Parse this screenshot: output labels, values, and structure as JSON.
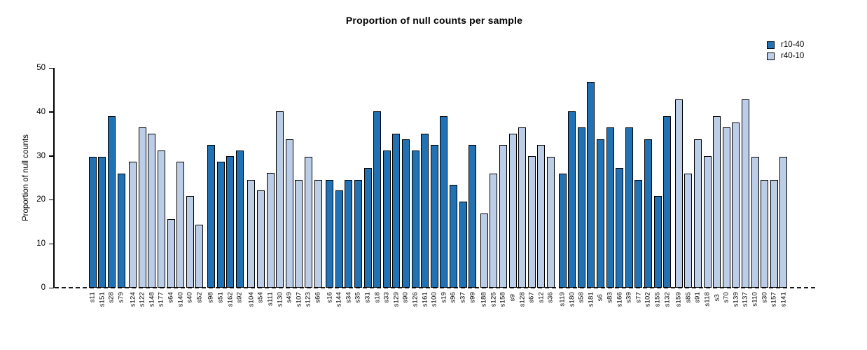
{
  "title": "Proportion of null counts per sample",
  "chart_data": {
    "type": "bar",
    "title": "Proportion of null counts per sample",
    "xlabel": "",
    "ylabel": "Proportion of null counts",
    "ylim": [
      0,
      50
    ],
    "yticks": [
      0,
      10,
      20,
      30,
      40,
      50
    ],
    "grid": false,
    "zero_baseline_style": "dashed",
    "legend": {
      "position": "top-right",
      "entries": [
        {
          "label": "r10-40",
          "color": "#2171B5"
        },
        {
          "label": "r40-10",
          "color": "#BCCDE8"
        }
      ]
    },
    "samples": [
      {
        "label": "s11",
        "value": 29.8,
        "group": "r10-40"
      },
      {
        "label": "s151",
        "value": 29.8,
        "group": "r10-40"
      },
      {
        "label": "s28",
        "value": 39.0,
        "group": "r10-40"
      },
      {
        "label": "s79",
        "value": 26.0,
        "group": "r10-40"
      },
      {
        "label": "s124",
        "value": 28.6,
        "group": "r40-10"
      },
      {
        "label": "s122",
        "value": 36.4,
        "group": "r40-10"
      },
      {
        "label": "s148",
        "value": 35.0,
        "group": "r40-10"
      },
      {
        "label": "s177",
        "value": 31.2,
        "group": "r40-10"
      },
      {
        "label": "s64",
        "value": 15.6,
        "group": "r40-10"
      },
      {
        "label": "s140",
        "value": 28.6,
        "group": "r40-10"
      },
      {
        "label": "s40",
        "value": 20.8,
        "group": "r40-10"
      },
      {
        "label": "s52",
        "value": 14.4,
        "group": "r40-10"
      },
      {
        "label": "s98",
        "value": 32.5,
        "group": "r10-40"
      },
      {
        "label": "s51",
        "value": 28.6,
        "group": "r10-40"
      },
      {
        "label": "s162",
        "value": 29.9,
        "group": "r10-40"
      },
      {
        "label": "s92",
        "value": 31.2,
        "group": "r10-40"
      },
      {
        "label": "s104",
        "value": 24.6,
        "group": "r40-10"
      },
      {
        "label": "s54",
        "value": 22.1,
        "group": "r40-10"
      },
      {
        "label": "s111",
        "value": 26.1,
        "group": "r40-10"
      },
      {
        "label": "s130",
        "value": 40.2,
        "group": "r40-10"
      },
      {
        "label": "s49",
        "value": 33.7,
        "group": "r40-10"
      },
      {
        "label": "s107",
        "value": 24.6,
        "group": "r40-10"
      },
      {
        "label": "s123",
        "value": 29.8,
        "group": "r40-10"
      },
      {
        "label": "s66",
        "value": 24.6,
        "group": "r40-10"
      },
      {
        "label": "s16",
        "value": 24.6,
        "group": "r10-40"
      },
      {
        "label": "s144",
        "value": 22.1,
        "group": "r10-40"
      },
      {
        "label": "s34",
        "value": 24.6,
        "group": "r10-40"
      },
      {
        "label": "s35",
        "value": 24.6,
        "group": "r10-40"
      },
      {
        "label": "s31",
        "value": 27.3,
        "group": "r10-40"
      },
      {
        "label": "s18",
        "value": 40.2,
        "group": "r10-40"
      },
      {
        "label": "s33",
        "value": 31.2,
        "group": "r10-40"
      },
      {
        "label": "s129",
        "value": 35.0,
        "group": "r10-40"
      },
      {
        "label": "s90",
        "value": 33.7,
        "group": "r10-40"
      },
      {
        "label": "s126",
        "value": 31.2,
        "group": "r10-40"
      },
      {
        "label": "s161",
        "value": 35.0,
        "group": "r10-40"
      },
      {
        "label": "s100",
        "value": 32.5,
        "group": "r10-40"
      },
      {
        "label": "s19",
        "value": 39.0,
        "group": "r10-40"
      },
      {
        "label": "s96",
        "value": 23.4,
        "group": "r10-40"
      },
      {
        "label": "s37",
        "value": 19.6,
        "group": "r10-40"
      },
      {
        "label": "s99",
        "value": 32.5,
        "group": "r10-40"
      },
      {
        "label": "s188",
        "value": 16.9,
        "group": "r40-10"
      },
      {
        "label": "s125",
        "value": 26.0,
        "group": "r40-10"
      },
      {
        "label": "s158",
        "value": 32.5,
        "group": "r40-10"
      },
      {
        "label": "s9",
        "value": 35.0,
        "group": "r40-10"
      },
      {
        "label": "s128",
        "value": 36.4,
        "group": "r40-10"
      },
      {
        "label": "s67",
        "value": 29.9,
        "group": "r40-10"
      },
      {
        "label": "s12",
        "value": 32.5,
        "group": "r40-10"
      },
      {
        "label": "s36",
        "value": 29.8,
        "group": "r40-10"
      },
      {
        "label": "s119",
        "value": 26.0,
        "group": "r10-40"
      },
      {
        "label": "s180",
        "value": 40.2,
        "group": "r10-40"
      },
      {
        "label": "s58",
        "value": 36.4,
        "group": "r10-40"
      },
      {
        "label": "s181",
        "value": 46.8,
        "group": "r10-40"
      },
      {
        "label": "s6",
        "value": 33.7,
        "group": "r10-40"
      },
      {
        "label": "s83",
        "value": 36.4,
        "group": "r10-40"
      },
      {
        "label": "s166",
        "value": 27.3,
        "group": "r10-40"
      },
      {
        "label": "s39",
        "value": 36.4,
        "group": "r10-40"
      },
      {
        "label": "s77",
        "value": 24.6,
        "group": "r10-40"
      },
      {
        "label": "s102",
        "value": 33.7,
        "group": "r10-40"
      },
      {
        "label": "s155",
        "value": 20.8,
        "group": "r10-40"
      },
      {
        "label": "s132",
        "value": 39.0,
        "group": "r10-40"
      },
      {
        "label": "s159",
        "value": 42.9,
        "group": "r40-10"
      },
      {
        "label": "s85",
        "value": 26.0,
        "group": "r40-10"
      },
      {
        "label": "s91",
        "value": 33.8,
        "group": "r40-10"
      },
      {
        "label": "s118",
        "value": 29.9,
        "group": "r40-10"
      },
      {
        "label": "s3",
        "value": 39.0,
        "group": "r40-10"
      },
      {
        "label": "s70",
        "value": 36.4,
        "group": "r40-10"
      },
      {
        "label": "s139",
        "value": 37.6,
        "group": "r40-10"
      },
      {
        "label": "s137",
        "value": 42.9,
        "group": "r40-10"
      },
      {
        "label": "s110",
        "value": 29.8,
        "group": "r40-10"
      },
      {
        "label": "s30",
        "value": 24.6,
        "group": "r40-10"
      },
      {
        "label": "s157",
        "value": 24.6,
        "group": "r40-10"
      },
      {
        "label": "s141",
        "value": 29.8,
        "group": "r40-10"
      }
    ]
  },
  "colors": {
    "bar_dark": "#2171B5",
    "bar_light": "#BCCDE8",
    "bar_border": "#000000",
    "axis": "#000000",
    "background": "#FFFFFF"
  }
}
